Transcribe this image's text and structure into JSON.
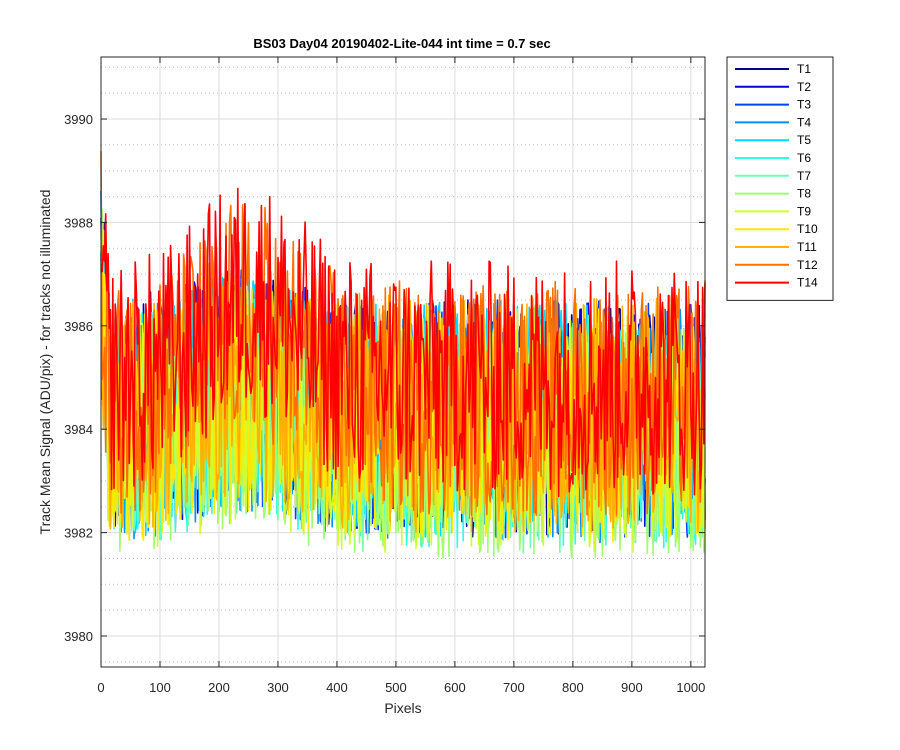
{
  "chart_data": {
    "type": "line",
    "title": "BS03 Day04 20190402-Lite-044 int time = 0.7 sec",
    "xlabel": "Pixels",
    "ylabel": "Track Mean Signal (ADU/pix) - for tracks not illuminated",
    "xlim": [
      0,
      1024
    ],
    "ylim": [
      3979.4,
      3991.2
    ],
    "xticks": [
      0,
      100,
      200,
      300,
      400,
      500,
      600,
      700,
      800,
      900,
      1000
    ],
    "yticks": [
      3980,
      3982,
      3984,
      3986,
      3988,
      3990
    ],
    "grid": true,
    "legend_position": "outside-right",
    "series": [
      {
        "name": "T1",
        "color": "#00008f",
        "mean": 3984.2
      },
      {
        "name": "T2",
        "color": "#0000d8",
        "mean": 3984.3
      },
      {
        "name": "T3",
        "color": "#0040ff",
        "mean": 3984.2
      },
      {
        "name": "T4",
        "color": "#0090ff",
        "mean": 3984.1
      },
      {
        "name": "T5",
        "color": "#00d8ff",
        "mean": 3984.2
      },
      {
        "name": "T6",
        "color": "#30ffe0",
        "mean": 3984.0
      },
      {
        "name": "T7",
        "color": "#70ffb0",
        "mean": 3983.9
      },
      {
        "name": "T8",
        "color": "#a0ff70",
        "mean": 3983.8
      },
      {
        "name": "T9",
        "color": "#d0ff30",
        "mean": 3983.9
      },
      {
        "name": "T10",
        "color": "#ffe800",
        "mean": 3984.1
      },
      {
        "name": "T11",
        "color": "#ffb000",
        "mean": 3984.3
      },
      {
        "name": "T12",
        "color": "#ff7000",
        "mean": 3984.6
      },
      {
        "name": "T14",
        "color": "#ff0000",
        "mean": 3985.0
      }
    ]
  }
}
